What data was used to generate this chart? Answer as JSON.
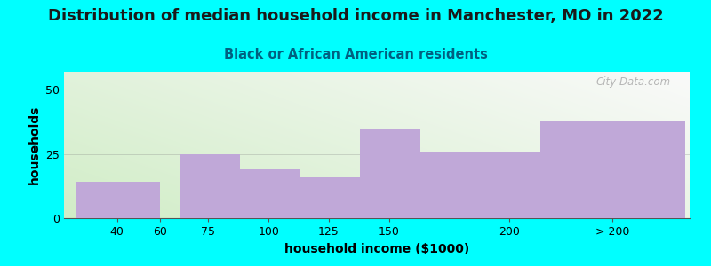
{
  "title": "Distribution of median household income in Manchester, MO in 2022",
  "subtitle": "Black or African American residents",
  "xlabel": "household income ($1000)",
  "ylabel": "households",
  "background_color": "#00FFFF",
  "bar_color": "#C0A8D8",
  "categories": [
    "40",
    "60",
    "75",
    "100",
    "125",
    "150",
    "200",
    "> 200"
  ],
  "values": [
    14,
    0,
    25,
    19,
    16,
    35,
    26,
    38
  ],
  "bar_lefts": [
    20,
    55,
    63,
    88,
    113,
    138,
    163,
    213
  ],
  "bar_widths": [
    35,
    0,
    25,
    25,
    25,
    25,
    50,
    60
  ],
  "xtick_positions": [
    37,
    55,
    75,
    100,
    125,
    150,
    200,
    243
  ],
  "ylim": [
    0,
    57
  ],
  "yticks": [
    0,
    25,
    50
  ],
  "xlim": [
    15,
    275
  ],
  "watermark": "City-Data.com",
  "title_color": "#1a1a1a",
  "subtitle_color": "#006080",
  "watermark_color": "#aaaaaa",
  "title_fontsize": 13,
  "subtitle_fontsize": 10.5,
  "axis_label_fontsize": 10,
  "tick_fontsize": 9
}
